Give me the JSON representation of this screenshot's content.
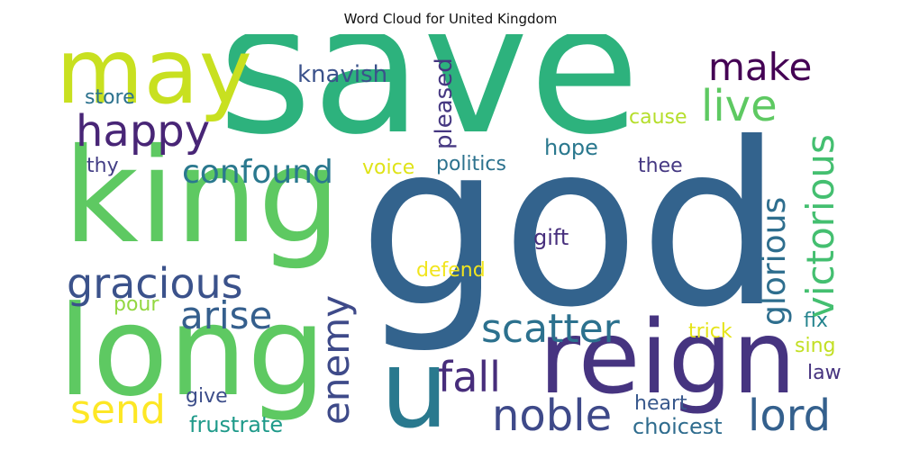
{
  "title": "Word Cloud for United Kingdom",
  "words": [
    {
      "text": "save",
      "color": "#2db27d"
    },
    {
      "text": "god",
      "color": "#33638d"
    },
    {
      "text": "king",
      "color": "#5ec962"
    },
    {
      "text": "long",
      "color": "#5ec962"
    },
    {
      "text": "reign",
      "color": "#463480"
    },
    {
      "text": "may",
      "color": "#c8e020"
    },
    {
      "text": "u",
      "color": "#29798e"
    },
    {
      "text": "happy",
      "color": "#482576"
    },
    {
      "text": "confound",
      "color": "#2a788e"
    },
    {
      "text": "gracious",
      "color": "#3b528b"
    },
    {
      "text": "arise",
      "color": "#355f8d"
    },
    {
      "text": "enemy",
      "color": "#3e4a89"
    },
    {
      "text": "scatter",
      "color": "#2c718e"
    },
    {
      "text": "fall",
      "color": "#472d7b"
    },
    {
      "text": "noble",
      "color": "#3e4989"
    },
    {
      "text": "lord",
      "color": "#34608d"
    },
    {
      "text": "send",
      "color": "#fde725"
    },
    {
      "text": "make",
      "color": "#440154"
    },
    {
      "text": "live",
      "color": "#5ec962"
    },
    {
      "text": "victorious",
      "color": "#44bf70"
    },
    {
      "text": "glorious",
      "color": "#2e6e8e"
    },
    {
      "text": "knavish",
      "color": "#3b528b"
    },
    {
      "text": "pleased",
      "color": "#453781"
    },
    {
      "text": "store",
      "color": "#2c728e"
    },
    {
      "text": "cause",
      "color": "#b5de2b"
    },
    {
      "text": "hope",
      "color": "#2a788e"
    },
    {
      "text": "thy",
      "color": "#433e85"
    },
    {
      "text": "voice",
      "color": "#dfe318"
    },
    {
      "text": "politics",
      "color": "#2c728e"
    },
    {
      "text": "thee",
      "color": "#453882"
    },
    {
      "text": "gift",
      "color": "#472f7d"
    },
    {
      "text": "defend",
      "color": "#f1e51d"
    },
    {
      "text": "pour",
      "color": "#93d741"
    },
    {
      "text": "trick",
      "color": "#e5e419"
    },
    {
      "text": "fix",
      "color": "#25848e"
    },
    {
      "text": "sing",
      "color": "#c2df23"
    },
    {
      "text": "law",
      "color": "#46337f"
    },
    {
      "text": "give",
      "color": "#3d4e8a"
    },
    {
      "text": "heart",
      "color": "#38588c"
    },
    {
      "text": "frustrate",
      "color": "#1f9a8a"
    },
    {
      "text": "choicest",
      "color": "#2f6c8e"
    }
  ]
}
